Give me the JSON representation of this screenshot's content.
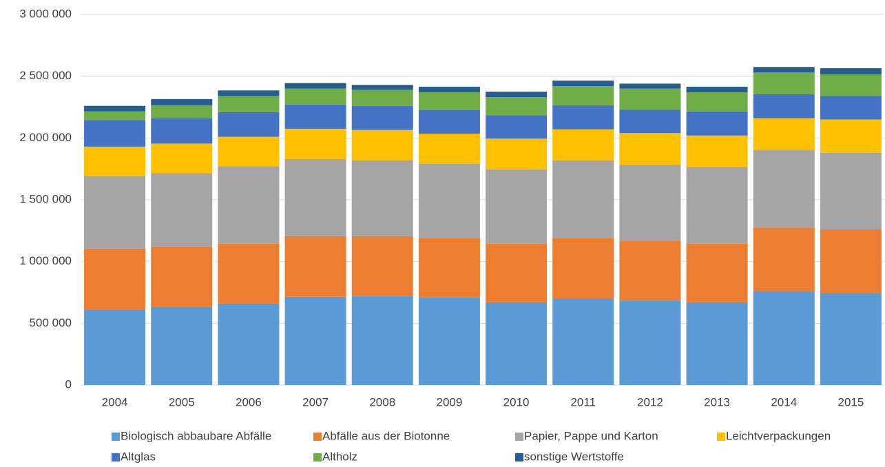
{
  "chart_data": {
    "type": "stacked_bar",
    "categories": [
      "2004",
      "2005",
      "2006",
      "2007",
      "2008",
      "2009",
      "2010",
      "2011",
      "2012",
      "2013",
      "2014",
      "2015"
    ],
    "series": [
      {
        "name": "Biologisch abbaubare Abfälle",
        "color": "#5b9bd5",
        "values": [
          610000,
          635000,
          660000,
          715000,
          720000,
          710000,
          670000,
          700000,
          685000,
          670000,
          760000,
          745000
        ]
      },
      {
        "name": "Abfälle aus der Biotonne",
        "color": "#ed7d31",
        "values": [
          495000,
          485000,
          485000,
          490000,
          485000,
          480000,
          475000,
          490000,
          485000,
          475000,
          515000,
          515000
        ]
      },
      {
        "name": "Papier, Pappe und Karton",
        "color": "#a5a5a5",
        "values": [
          585000,
          595000,
          625000,
          625000,
          615000,
          600000,
          600000,
          630000,
          615000,
          620000,
          630000,
          620000
        ]
      },
      {
        "name": "Leichtverpackungen",
        "color": "#ffc000",
        "values": [
          240000,
          240000,
          240000,
          245000,
          245000,
          245000,
          250000,
          250000,
          255000,
          255000,
          255000,
          270000
        ]
      },
      {
        "name": "Altglas",
        "color": "#4472c4",
        "values": [
          215000,
          205000,
          200000,
          195000,
          195000,
          190000,
          190000,
          195000,
          190000,
          195000,
          195000,
          190000
        ]
      },
      {
        "name": "Altholz",
        "color": "#70ad47",
        "values": [
          70000,
          105000,
          130000,
          130000,
          130000,
          145000,
          145000,
          155000,
          170000,
          155000,
          175000,
          175000
        ]
      },
      {
        "name": "sonstige Wertstoffe",
        "color": "#255e91",
        "values": [
          45000,
          50000,
          45000,
          45000,
          40000,
          45000,
          45000,
          45000,
          40000,
          45000,
          45000,
          50000
        ]
      }
    ],
    "ylim": [
      0,
      3000000
    ],
    "yticks": [
      0,
      {
        "value": 500000,
        "label": "500 000"
      },
      {
        "value": 1000000,
        "label": "1 000 000"
      },
      {
        "value": 1500000,
        "label": "1 500 000"
      },
      {
        "value": 2000000,
        "label": "2 000 000"
      },
      {
        "value": 2500000,
        "label": "2 500 000"
      },
      {
        "value": 3000000,
        "label": "3 000 000"
      }
    ],
    "grid": true,
    "legend": "bottom"
  }
}
